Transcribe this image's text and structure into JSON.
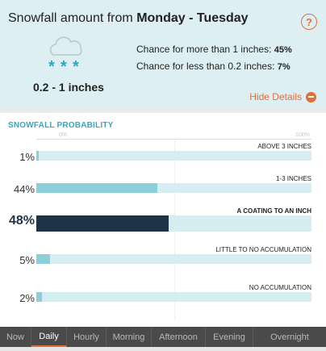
{
  "header": {
    "title_prefix": "Snowfall amount from ",
    "title_bold": "Monday - Tuesday",
    "help_label": "?"
  },
  "summary": {
    "range": "0.2 - 1 inches",
    "chance_more_label": "Chance for more than 1 inches: ",
    "chance_more_value": "45%",
    "chance_less_label": "Chance for less than 0.2 inches: ",
    "chance_less_value": "7%",
    "hide_details": "Hide Details",
    "icon": "snow-cloud-icon"
  },
  "probability": {
    "section_title": "SNOWFALL PROBABILITY",
    "axis_min": "0%",
    "axis_max": "100%",
    "rows": [
      {
        "label": "ABOVE 3 INCHES",
        "pct": "1%",
        "value": 1
      },
      {
        "label": "1-3 INCHES",
        "pct": "44%",
        "value": 44
      },
      {
        "label": "A COATING TO AN INCH",
        "pct": "48%",
        "value": 48,
        "highlight": true
      },
      {
        "label": "LITTLE TO NO ACCUMULATION",
        "pct": "5%",
        "value": 5
      },
      {
        "label": "NO ACCUMULATION",
        "pct": "2%",
        "value": 2
      }
    ]
  },
  "tabs": [
    {
      "label": "Now",
      "active": false
    },
    {
      "label": "Daily",
      "active": true
    },
    {
      "label": "Hourly",
      "active": false
    },
    {
      "label": "Morning",
      "active": false
    },
    {
      "label": "Afternoon",
      "active": false
    },
    {
      "label": "Evening",
      "active": false
    },
    {
      "label": "Overnight",
      "active": false
    }
  ],
  "colors": {
    "accent": "#e0703a",
    "bar_light": "#8ccfdb",
    "bar_dark": "#1f3348",
    "track": "#d6eef2",
    "panel_bg": "#ddeff3"
  }
}
